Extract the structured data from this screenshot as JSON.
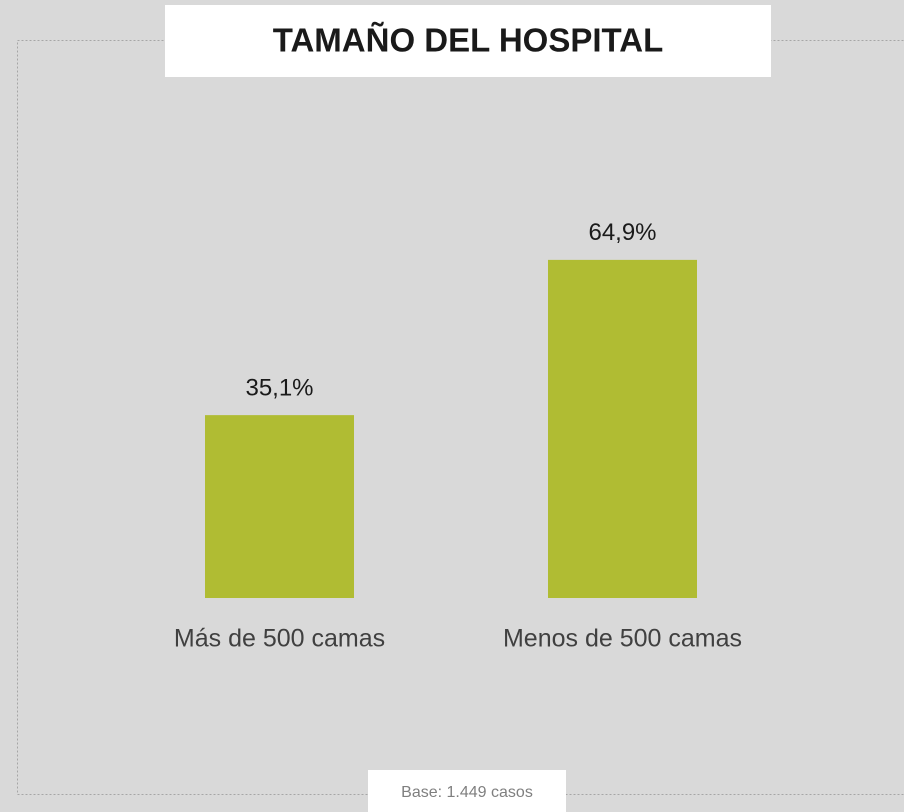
{
  "chart_data": {
    "type": "bar",
    "title": "TAMAÑO DEL HOSPITAL",
    "categories": [
      "Más de 500 camas",
      "Menos de 500 camas"
    ],
    "values": [
      35.1,
      64.9
    ],
    "value_labels": [
      "35,1%",
      "64,9%"
    ],
    "color": "#b0bc33",
    "footnote": "Base: 1.449 casos"
  }
}
